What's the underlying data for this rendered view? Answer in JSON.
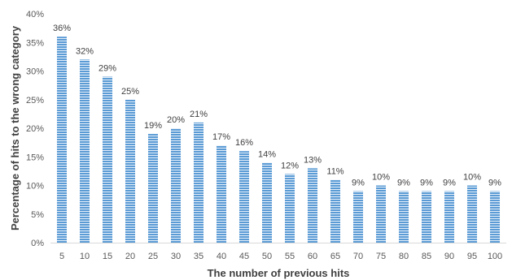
{
  "chart_data": {
    "type": "bar",
    "title": "",
    "xlabel": "The number of previous hits",
    "ylabel": "Percentage of hits to the wrong category",
    "categories": [
      "5",
      "10",
      "15",
      "20",
      "25",
      "30",
      "35",
      "40",
      "45",
      "50",
      "55",
      "60",
      "65",
      "70",
      "75",
      "80",
      "85",
      "90",
      "95",
      "100"
    ],
    "values": [
      36,
      32,
      29,
      25,
      19,
      20,
      21,
      17,
      16,
      14,
      12,
      13,
      11,
      9,
      10,
      9,
      9,
      9,
      10,
      9
    ],
    "data_labels": [
      "36%",
      "32%",
      "29%",
      "25%",
      "19%",
      "20%",
      "21%",
      "17%",
      "16%",
      "14%",
      "12%",
      "13%",
      "11%",
      "9%",
      "10%",
      "9%",
      "9%",
      "9%",
      "10%",
      "9%"
    ],
    "ylim": [
      0,
      40
    ],
    "yticks": [
      0,
      5,
      10,
      15,
      20,
      25,
      30,
      35,
      40
    ],
    "ytick_labels": [
      "0%",
      "5%",
      "10%",
      "15%",
      "20%",
      "25%",
      "30%",
      "35%",
      "40%"
    ],
    "grid": false,
    "legend": "none",
    "bar_color": "#5b9bd5",
    "bar_stripe_color": "#ffffff",
    "axis_color": "#d9d9d9"
  }
}
